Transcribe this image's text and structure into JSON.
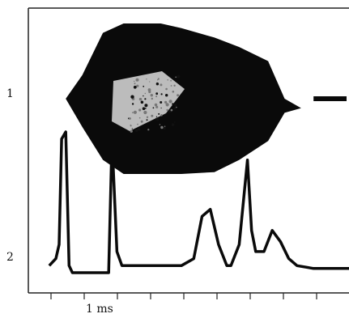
{
  "chart_data": {
    "type": "line",
    "title": "",
    "xlabel": "",
    "ylabel": "",
    "grid": false,
    "x_scale_label": "1 ms",
    "trace_labels": [
      "1",
      "2"
    ],
    "series": [
      {
        "name": "1",
        "kind": "oscillation envelope",
        "x": [
          0.6,
          0.8,
          1.05,
          1.3,
          1.75,
          2.0,
          2.4,
          2.7,
          3.05,
          3.25,
          3.45,
          3.65,
          3.9
        ],
        "upper": [
          1.2,
          1.45,
          1.9,
          2.0,
          2.0,
          1.95,
          1.85,
          1.75,
          1.6,
          1.2,
          1.1,
          1.15,
          1.15
        ],
        "lower": [
          1.2,
          0.9,
          0.55,
          0.4,
          0.4,
          0.4,
          0.42,
          0.55,
          0.75,
          1.05,
          1.1,
          1.15,
          1.15
        ]
      },
      {
        "name": "2",
        "kind": "pulse trace",
        "x": [
          0.0,
          0.08,
          0.12,
          0.15,
          0.2,
          0.24,
          0.28,
          0.6,
          0.72,
          0.76,
          0.82,
          0.88,
          1.0,
          1.6,
          1.75,
          1.85,
          1.95,
          2.05,
          2.15,
          2.2,
          2.3,
          2.4,
          2.45,
          2.5,
          2.6,
          2.7,
          2.8,
          2.9,
          3.0,
          3.2,
          3.3,
          3.5,
          3.65
        ],
        "y": [
          0.05,
          0.1,
          0.2,
          0.95,
          1.0,
          0.05,
          0.0,
          0.0,
          0.0,
          0.95,
          0.15,
          0.05,
          0.05,
          0.05,
          0.1,
          0.4,
          0.45,
          0.2,
          0.05,
          0.05,
          0.2,
          0.8,
          0.3,
          0.15,
          0.15,
          0.3,
          0.22,
          0.1,
          0.05,
          0.03,
          0.03,
          0.03,
          0.03
        ]
      }
    ]
  }
}
